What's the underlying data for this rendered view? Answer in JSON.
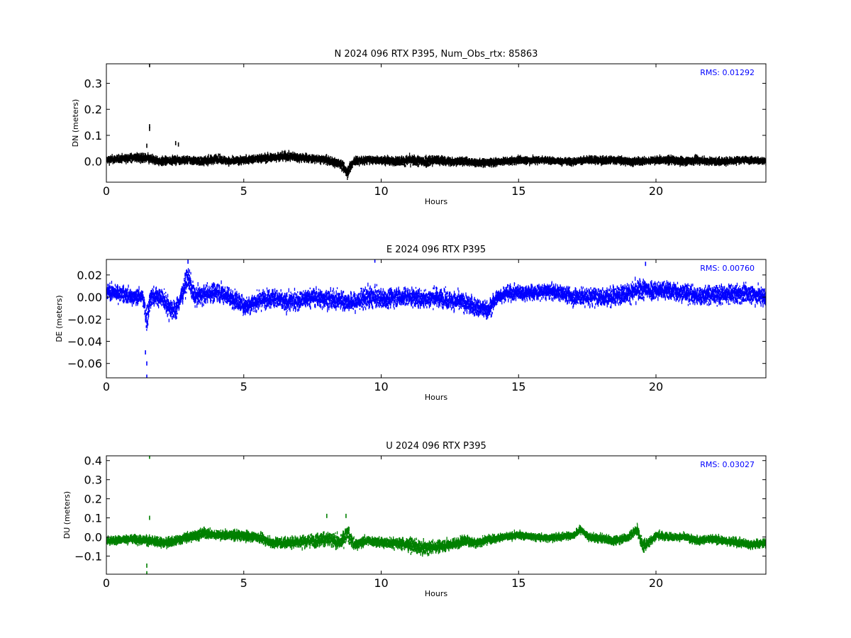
{
  "chart_data": [
    {
      "type": "scatter",
      "title": "N 2024 096 RTX  P395, Num_Obs_rtx: 85863",
      "xlabel": "Hours",
      "ylabel": "DN (meters)",
      "xlim": [
        0,
        24
      ],
      "ylim": [
        -0.08,
        0.375
      ],
      "xticks": [
        0,
        5,
        10,
        15,
        20
      ],
      "yticks": [
        0.0,
        0.1,
        0.2,
        0.3
      ],
      "ytick_labels": [
        "0.0",
        "0.1",
        "0.2",
        "0.3"
      ],
      "color": "#000000",
      "annotation": "RMS:  0.01292",
      "grid": false,
      "series": [
        {
          "x": [
            0,
            0.5,
            1.0,
            1.5,
            2.0,
            2.5,
            3,
            3.5,
            4,
            4.5,
            5,
            5.5,
            6,
            6.5,
            7,
            7.5,
            8,
            8.5,
            8.75,
            9,
            9.5,
            10,
            10.5,
            11,
            11.5,
            12,
            12.5,
            13,
            13.5,
            14,
            14.5,
            15,
            15.5,
            16,
            16.5,
            17,
            17.5,
            18,
            18.5,
            19,
            19.5,
            20,
            20.5,
            21,
            21.5,
            22,
            22.5,
            23,
            23.5,
            24
          ],
          "y": [
            0.005,
            0.01,
            0.015,
            0.01,
            0.0,
            0.005,
            0.005,
            0.0,
            0.01,
            0.0,
            0.005,
            0.01,
            0.015,
            0.02,
            0.015,
            0.01,
            0.005,
            -0.01,
            -0.04,
            0.0,
            0.005,
            0.005,
            0.0,
            0.005,
            0.0,
            0.005,
            0.0,
            0.0,
            -0.005,
            -0.005,
            0.0,
            0.005,
            0.005,
            0.005,
            0.0,
            0.0,
            0.005,
            0.005,
            0.005,
            0.0,
            0.0,
            0.005,
            0.005,
            0.0,
            0.005,
            0.0,
            0.0,
            0.005,
            0.005,
            0.0
          ],
          "spread": [
            0.04,
            0.04,
            0.045,
            0.05,
            0.045,
            0.04,
            0.04,
            0.045,
            0.045,
            0.04,
            0.04,
            0.045,
            0.045,
            0.045,
            0.045,
            0.04,
            0.04,
            0.05,
            0.07,
            0.05,
            0.04,
            0.04,
            0.045,
            0.05,
            0.065,
            0.05,
            0.045,
            0.04,
            0.04,
            0.04,
            0.035,
            0.04,
            0.04,
            0.035,
            0.035,
            0.035,
            0.04,
            0.04,
            0.04,
            0.04,
            0.04,
            0.04,
            0.04,
            0.04,
            0.045,
            0.04,
            0.04,
            0.035,
            0.035,
            0.035
          ]
        }
      ],
      "outliers": [
        [
          1.55,
          0.37
        ],
        [
          1.55,
          0.135
        ],
        [
          1.55,
          0.125
        ],
        [
          1.45,
          0.06
        ],
        [
          2.6,
          0.065
        ],
        [
          2.5,
          0.07
        ]
      ]
    },
    {
      "type": "scatter",
      "title": "E 2024 096 RTX  P395",
      "xlabel": "Hours",
      "ylabel": "DE (meters)",
      "xlim": [
        0,
        24
      ],
      "ylim": [
        -0.073,
        0.034
      ],
      "xticks": [
        0,
        5,
        10,
        15,
        20
      ],
      "yticks": [
        -0.06,
        -0.04,
        -0.02,
        0.0,
        0.02
      ],
      "ytick_labels": [
        "−0.06",
        "−0.04",
        "−0.02",
        "0.00",
        "0.02"
      ],
      "color": "#0000ff",
      "annotation": "RMS:  0.00760",
      "grid": false,
      "series": [
        {
          "x": [
            0,
            0.5,
            1.0,
            1.3,
            1.45,
            1.6,
            2.0,
            2.3,
            2.5,
            2.7,
            2.95,
            3.2,
            3.5,
            4,
            4.5,
            5,
            5.5,
            6,
            6.5,
            7,
            7.5,
            8,
            8.5,
            9,
            9.5,
            10,
            10.5,
            11,
            11.5,
            12,
            12.5,
            13,
            13.5,
            13.9,
            14.2,
            14.5,
            15,
            15.5,
            16,
            16.5,
            17,
            17.5,
            18,
            18.5,
            19,
            19.5,
            20,
            20.5,
            21,
            21.5,
            22,
            22.5,
            23,
            23.5,
            24
          ],
          "y": [
            0.005,
            0.003,
            0.0,
            0.0,
            -0.02,
            0.0,
            0.0,
            -0.01,
            -0.012,
            0.0,
            0.018,
            0.0,
            0.002,
            0.005,
            0.0,
            -0.008,
            -0.004,
            0.0,
            -0.005,
            -0.003,
            0.0,
            -0.002,
            -0.003,
            -0.005,
            0.0,
            -0.002,
            0.0,
            0.0,
            -0.002,
            0.0,
            -0.003,
            -0.005,
            -0.01,
            -0.012,
            0.0,
            0.003,
            0.004,
            0.004,
            0.005,
            0.004,
            0.0,
            0.0,
            0.0,
            0.001,
            0.004,
            0.007,
            0.006,
            0.006,
            0.004,
            0.001,
            0.002,
            0.002,
            0.003,
            0.003,
            0.0
          ],
          "spread": [
            0.02,
            0.02,
            0.02,
            0.02,
            0.04,
            0.025,
            0.025,
            0.03,
            0.025,
            0.025,
            0.03,
            0.025,
            0.025,
            0.025,
            0.025,
            0.025,
            0.025,
            0.025,
            0.025,
            0.025,
            0.025,
            0.025,
            0.025,
            0.025,
            0.03,
            0.025,
            0.025,
            0.025,
            0.025,
            0.025,
            0.025,
            0.025,
            0.025,
            0.025,
            0.02,
            0.02,
            0.02,
            0.02,
            0.02,
            0.02,
            0.025,
            0.025,
            0.025,
            0.025,
            0.025,
            0.03,
            0.025,
            0.025,
            0.025,
            0.025,
            0.025,
            0.025,
            0.025,
            0.025,
            0.025
          ]
        }
      ],
      "outliers": [
        [
          1.45,
          -0.072
        ],
        [
          1.45,
          -0.06
        ],
        [
          1.4,
          -0.05
        ],
        [
          9.75,
          0.033
        ],
        [
          2.95,
          0.032
        ],
        [
          19.6,
          0.03
        ]
      ]
    },
    {
      "type": "scatter",
      "title": "U 2024 096 RTX  P395",
      "xlabel": "Hours",
      "ylabel": "DU (meters)",
      "xlim": [
        0,
        24
      ],
      "ylim": [
        -0.195,
        0.425
      ],
      "xticks": [
        0,
        5,
        10,
        15,
        20
      ],
      "yticks": [
        -0.1,
        0.0,
        0.1,
        0.2,
        0.3,
        0.4
      ],
      "ytick_labels": [
        "−0.1",
        "0.0",
        "0.1",
        "0.2",
        "0.3",
        "0.4"
      ],
      "color": "#008000",
      "annotation": "RMS:  0.03027",
      "grid": false,
      "series": [
        {
          "x": [
            0,
            0.5,
            1.0,
            1.5,
            2.0,
            2.5,
            3,
            3.5,
            4,
            4.5,
            5,
            5.5,
            6,
            6.5,
            7,
            7.5,
            8,
            8.5,
            8.75,
            9,
            9.5,
            10,
            10.5,
            11,
            11.5,
            12,
            12.5,
            13,
            13.5,
            14,
            14.5,
            15,
            15.5,
            16,
            16.5,
            17,
            17.25,
            17.5,
            18,
            18.5,
            19,
            19.3,
            19.5,
            19.8,
            20,
            20.5,
            21,
            21.5,
            22,
            22.5,
            23,
            23.5,
            24
          ],
          "y": [
            -0.02,
            -0.015,
            -0.01,
            -0.02,
            -0.03,
            -0.02,
            0.0,
            0.02,
            0.01,
            0.01,
            0.005,
            0.0,
            -0.03,
            -0.03,
            -0.025,
            -0.02,
            -0.01,
            -0.03,
            0.02,
            -0.04,
            -0.02,
            -0.03,
            -0.03,
            -0.04,
            -0.06,
            -0.05,
            -0.04,
            -0.02,
            -0.03,
            -0.01,
            0.0,
            0.01,
            0.0,
            -0.005,
            0.0,
            0.01,
            0.04,
            0.0,
            -0.01,
            -0.02,
            0.0,
            0.04,
            -0.05,
            -0.02,
            0.01,
            0.0,
            0.0,
            -0.02,
            -0.01,
            -0.02,
            -0.03,
            -0.04,
            -0.03
          ],
          "spread": [
            0.06,
            0.06,
            0.06,
            0.08,
            0.07,
            0.07,
            0.07,
            0.08,
            0.07,
            0.07,
            0.07,
            0.07,
            0.08,
            0.08,
            0.09,
            0.1,
            0.12,
            0.1,
            0.12,
            0.08,
            0.07,
            0.07,
            0.08,
            0.1,
            0.1,
            0.09,
            0.08,
            0.08,
            0.07,
            0.06,
            0.05,
            0.05,
            0.05,
            0.05,
            0.05,
            0.05,
            0.06,
            0.05,
            0.06,
            0.06,
            0.06,
            0.08,
            0.1,
            0.07,
            0.06,
            0.05,
            0.05,
            0.06,
            0.06,
            0.06,
            0.06,
            0.06,
            0.06
          ]
        }
      ],
      "outliers": [
        [
          1.55,
          0.42
        ],
        [
          1.55,
          0.1
        ],
        [
          1.45,
          -0.15
        ],
        [
          1.45,
          -0.19
        ],
        [
          8.0,
          0.11
        ],
        [
          8.7,
          0.11
        ]
      ]
    }
  ]
}
